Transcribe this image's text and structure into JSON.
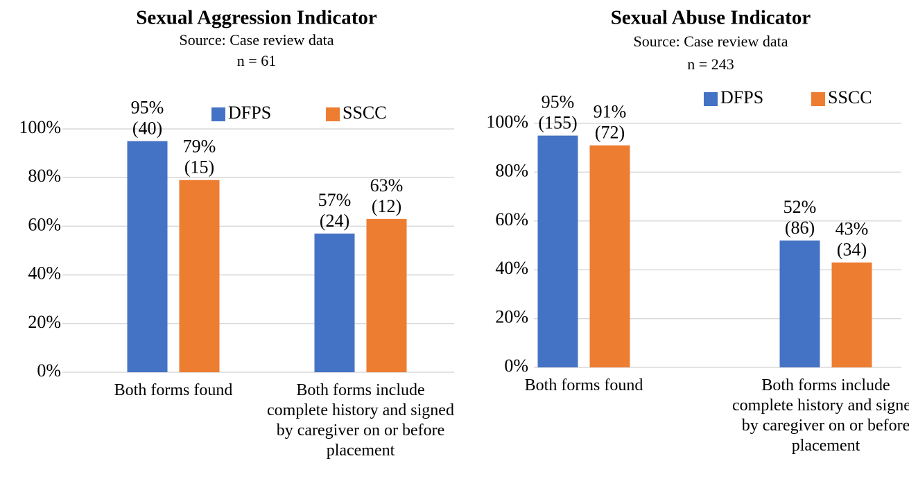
{
  "chart_data": [
    {
      "type": "bar",
      "title": "Sexual Aggression Indicator",
      "subtitle": [
        "Source: Case review data",
        "n = 61"
      ],
      "categories": [
        "Both forms found",
        "Both forms include complete history and signed by caregiver on or before placement"
      ],
      "series": [
        {
          "name": "DFPS",
          "color": "#4472c4",
          "values": [
            95,
            57
          ],
          "value_labels": [
            "95%",
            "57%"
          ],
          "count_labels": [
            "(40)",
            "(24)"
          ]
        },
        {
          "name": "SSCC",
          "color": "#ed7d31",
          "values": [
            79,
            63
          ],
          "value_labels": [
            "79%",
            "63%"
          ],
          "count_labels": [
            "(15)",
            "(12)"
          ]
        }
      ],
      "ylim": [
        0,
        100
      ],
      "yticks": [
        {
          "value": 0,
          "label": "0%"
        },
        {
          "value": 20,
          "label": "20%"
        },
        {
          "value": 40,
          "label": "40%"
        },
        {
          "value": 60,
          "label": "60%"
        },
        {
          "value": 80,
          "label": "80%"
        },
        {
          "value": 100,
          "label": "100%"
        }
      ],
      "grid": true,
      "legend": "top"
    },
    {
      "type": "bar",
      "title": "Sexual Abuse Indicator",
      "subtitle": [
        "Source: Case review data",
        "n = 243"
      ],
      "categories": [
        "Both forms found",
        "Both forms include complete history and signed by caregiver on or before placement"
      ],
      "series": [
        {
          "name": "DFPS",
          "color": "#4472c4",
          "values": [
            95,
            52
          ],
          "value_labels": [
            "95%",
            "52%"
          ],
          "count_labels": [
            "(155)",
            "(86)"
          ]
        },
        {
          "name": "SSCC",
          "color": "#ed7d31",
          "values": [
            91,
            43
          ],
          "value_labels": [
            "91%",
            "43%"
          ],
          "count_labels": [
            "(72)",
            "(34)"
          ]
        }
      ],
      "ylim": [
        0,
        100
      ],
      "yticks": [
        {
          "value": 0,
          "label": "0%"
        },
        {
          "value": 20,
          "label": "20%"
        },
        {
          "value": 40,
          "label": "40%"
        },
        {
          "value": 60,
          "label": "60%"
        },
        {
          "value": 80,
          "label": "80%"
        },
        {
          "value": 100,
          "label": "100%"
        }
      ],
      "grid": true,
      "legend": "top"
    }
  ]
}
